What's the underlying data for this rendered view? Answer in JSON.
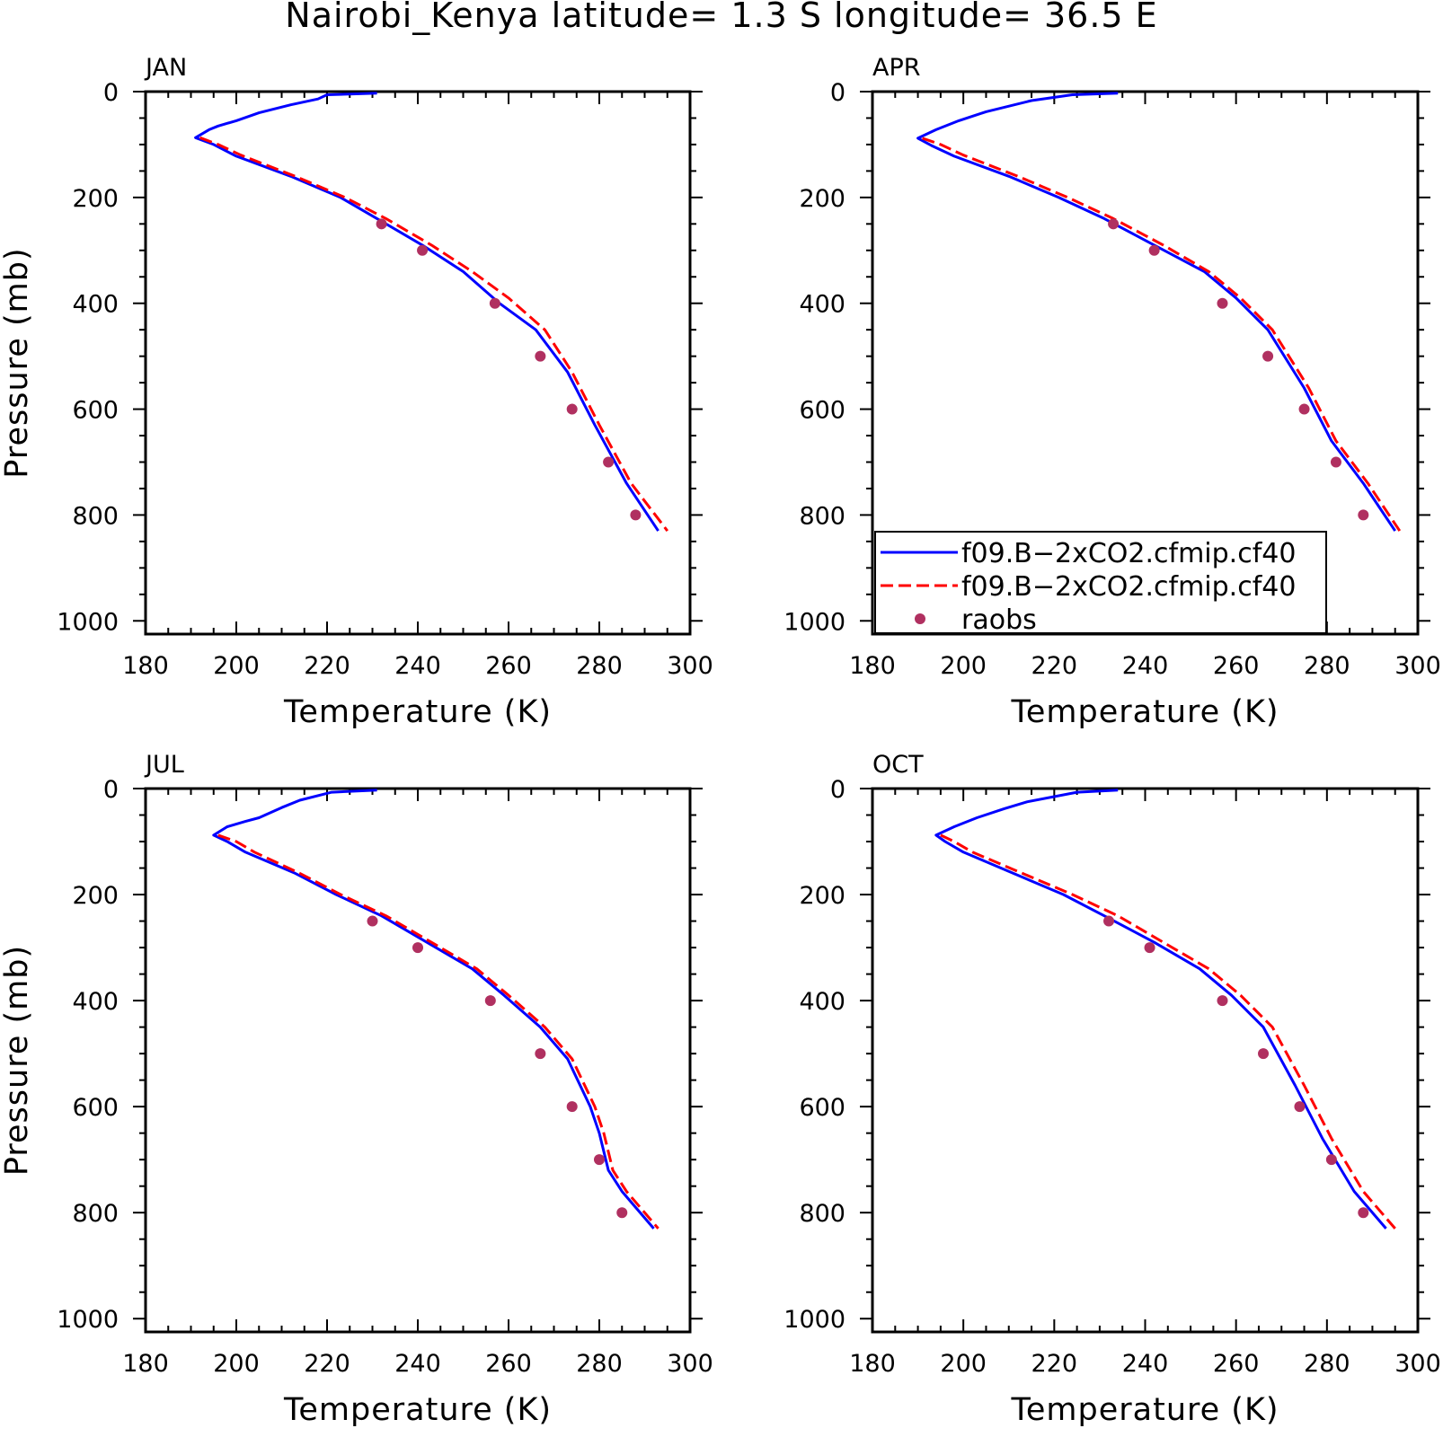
{
  "title": "Nairobi_Kenya  latitude= 1.3 S longitude= 36.5 E",
  "chart_data": [
    {
      "type": "line",
      "panel": "JAN",
      "xlabel": "Temperature (K)",
      "ylabel": "Pressure (mb)",
      "xlim": [
        180,
        300
      ],
      "ylim": [
        1000,
        0
      ],
      "xticks": [
        "180",
        "200",
        "220",
        "240",
        "260",
        "280",
        "300"
      ],
      "yticks": [
        "0",
        "200",
        "400",
        "600",
        "800",
        "1000"
      ],
      "series": [
        {
          "name": "f09.B−2xCO2.cfmip.cf40",
          "style": "solid",
          "color": "#0000ff",
          "x": [
            231,
            220,
            218,
            212,
            205,
            200,
            196,
            194,
            191,
            195,
            200,
            212,
            223,
            231,
            241,
            250,
            258,
            266,
            273,
            279,
            286,
            293
          ],
          "y": [
            3,
            6,
            14,
            25,
            40,
            55,
            65,
            72,
            87,
            100,
            122,
            160,
            200,
            240,
            290,
            340,
            400,
            450,
            530,
            630,
            740,
            830
          ]
        },
        {
          "name": "f09.B−2xCO2.cfmip.cf40",
          "style": "dashed",
          "color": "#ff0000",
          "x": [
            192,
            196,
            201,
            213,
            224,
            233,
            243,
            252,
            260,
            268,
            274,
            280,
            287,
            295
          ],
          "y": [
            87,
            100,
            120,
            160,
            200,
            240,
            290,
            340,
            390,
            450,
            530,
            630,
            740,
            830
          ]
        },
        {
          "name": "raobs",
          "style": "markers",
          "color": "#b03060",
          "x": [
            232,
            241,
            257,
            267,
            274,
            282,
            288
          ],
          "y": [
            250,
            300,
            400,
            500,
            600,
            700,
            800
          ]
        }
      ]
    },
    {
      "type": "line",
      "panel": "APR",
      "xlabel": "Temperature (K)",
      "ylabel": "",
      "xlim": [
        180,
        300
      ],
      "ylim": [
        1000,
        0
      ],
      "xticks": [
        "180",
        "200",
        "220",
        "240",
        "260",
        "280",
        "300"
      ],
      "yticks": [
        "0",
        "200",
        "400",
        "600",
        "800",
        "1000"
      ],
      "legend": {
        "position": "bottom-left",
        "entries": [
          {
            "label": "f09.B−2xCO2.cfmip.cf40",
            "style": "solid",
            "color": "#0000ff"
          },
          {
            "label": "f09.B−2xCO2.cfmip.cf40",
            "style": "dashed",
            "color": "#ff0000"
          },
          {
            "label": "raobs",
            "style": "markers",
            "color": "#b03060"
          }
        ]
      },
      "series": [
        {
          "name": "f09.B−2xCO2.cfmip.cf40",
          "style": "solid",
          "color": "#0000ff",
          "x": [
            234,
            224,
            215,
            205,
            199,
            194,
            190,
            193,
            198,
            210,
            221,
            231,
            242,
            253,
            260,
            267,
            275,
            281,
            288,
            295
          ],
          "y": [
            3,
            6,
            17,
            38,
            55,
            72,
            88,
            102,
            122,
            160,
            200,
            240,
            290,
            340,
            390,
            450,
            560,
            660,
            740,
            830
          ]
        },
        {
          "name": "f09.B−2xCO2.cfmip.cf40",
          "style": "dashed",
          "color": "#ff0000",
          "x": [
            191,
            195,
            200,
            212,
            223,
            233,
            244,
            254,
            261,
            268,
            276,
            282,
            289,
            296
          ],
          "y": [
            88,
            100,
            120,
            160,
            200,
            240,
            290,
            340,
            390,
            450,
            560,
            660,
            740,
            830
          ]
        },
        {
          "name": "raobs",
          "style": "markers",
          "color": "#b03060",
          "x": [
            233,
            242,
            257,
            267,
            275,
            282,
            288
          ],
          "y": [
            250,
            300,
            400,
            500,
            600,
            700,
            800
          ]
        }
      ]
    },
    {
      "type": "line",
      "panel": "JUL",
      "xlabel": "Temperature (K)",
      "ylabel": "Pressure (mb)",
      "xlim": [
        180,
        300
      ],
      "ylim": [
        1000,
        0
      ],
      "xticks": [
        "180",
        "200",
        "220",
        "240",
        "260",
        "280",
        "300"
      ],
      "yticks": [
        "0",
        "200",
        "400",
        "600",
        "800",
        "1000"
      ],
      "series": [
        {
          "name": "f09.B−2xCO2.cfmip.cf40",
          "style": "solid",
          "color": "#0000ff",
          "x": [
            231,
            221,
            214,
            210,
            205,
            202,
            198,
            195,
            198,
            202,
            213,
            222,
            232,
            242,
            252,
            259,
            267,
            273,
            278,
            280,
            282,
            285,
            292
          ],
          "y": [
            3,
            7,
            22,
            36,
            55,
            62,
            72,
            88,
            100,
            120,
            160,
            200,
            240,
            290,
            340,
            390,
            450,
            510,
            600,
            650,
            720,
            760,
            830
          ]
        },
        {
          "name": "f09.B−2xCO2.cfmip.cf40",
          "style": "dashed",
          "color": "#ff0000",
          "x": [
            196,
            200,
            204,
            214,
            223,
            233,
            243,
            253,
            260,
            268,
            274,
            279,
            281,
            283,
            286,
            293
          ],
          "y": [
            88,
            100,
            120,
            160,
            200,
            240,
            290,
            340,
            390,
            450,
            510,
            600,
            650,
            720,
            760,
            830
          ]
        },
        {
          "name": "raobs",
          "style": "markers",
          "color": "#b03060",
          "x": [
            230,
            240,
            256,
            267,
            274,
            280,
            285
          ],
          "y": [
            250,
            300,
            400,
            500,
            600,
            700,
            800
          ]
        }
      ]
    },
    {
      "type": "line",
      "panel": "OCT",
      "xlabel": "Temperature (K)",
      "ylabel": "",
      "xlim": [
        180,
        300
      ],
      "ylim": [
        1000,
        0
      ],
      "xticks": [
        "180",
        "200",
        "220",
        "240",
        "260",
        "280",
        "300"
      ],
      "yticks": [
        "0",
        "200",
        "400",
        "600",
        "800",
        "1000"
      ],
      "series": [
        {
          "name": "f09.B−2xCO2.cfmip.cf40",
          "style": "solid",
          "color": "#0000ff",
          "x": [
            234,
            225,
            214,
            209,
            203,
            198,
            194,
            196,
            200,
            211,
            222,
            231,
            242,
            252,
            259,
            266,
            273,
            279,
            286,
            293
          ],
          "y": [
            3,
            7,
            25,
            38,
            55,
            72,
            88,
            100,
            120,
            160,
            200,
            240,
            290,
            340,
            390,
            450,
            560,
            660,
            760,
            830
          ]
        },
        {
          "name": "f09.B−2xCO2.cfmip.cf40",
          "style": "dashed",
          "color": "#ff0000",
          "x": [
            195,
            198,
            202,
            213,
            224,
            234,
            244,
            254,
            261,
            268,
            275,
            281,
            288,
            295
          ],
          "y": [
            88,
            100,
            120,
            160,
            200,
            240,
            290,
            340,
            390,
            450,
            560,
            660,
            760,
            830
          ]
        },
        {
          "name": "raobs",
          "style": "markers",
          "color": "#b03060",
          "x": [
            232,
            241,
            257,
            266,
            274,
            281,
            288
          ],
          "y": [
            250,
            300,
            400,
            500,
            600,
            700,
            800
          ]
        }
      ]
    }
  ]
}
